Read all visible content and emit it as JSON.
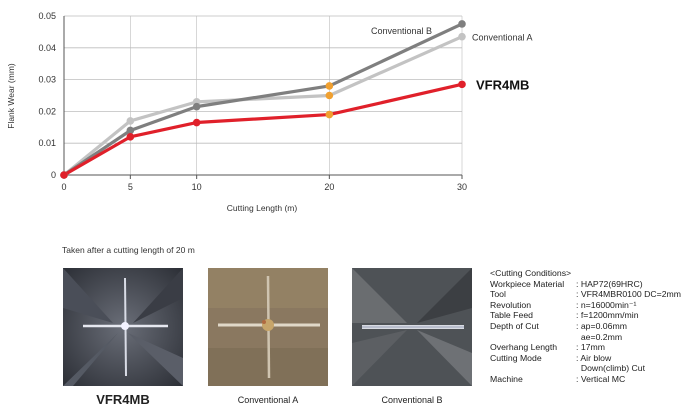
{
  "chart_data": {
    "type": "line",
    "title": "",
    "xlabel": "Cutting Length (m)",
    "ylabel": "Flank Wear (mm)",
    "x": [
      0,
      5,
      10,
      20,
      30
    ],
    "xticks": [
      "0",
      "5",
      "10",
      "20",
      "30"
    ],
    "yticks": [
      "0",
      "0.01",
      "0.02",
      "0.03",
      "0.04",
      "0.05"
    ],
    "xlim": [
      0,
      30
    ],
    "ylim": [
      0,
      0.05
    ],
    "grid": "horizontal",
    "series": [
      {
        "name": "Conventional A",
        "color": "#c3c3c3",
        "values": [
          0,
          0.017,
          0.023,
          0.025,
          0.0435
        ],
        "highlight_color": "#f0a030",
        "highlight_index": 3
      },
      {
        "name": "Conventional B",
        "color": "#7f7f7f",
        "values": [
          0,
          0.014,
          0.0215,
          0.028,
          0.0475
        ],
        "highlight_color": "#f0a030",
        "highlight_index": 3
      },
      {
        "name": "VFR4MB",
        "color": "#e0202a",
        "values": [
          0,
          0.012,
          0.0165,
          0.019,
          0.0285
        ],
        "highlight_color": "#f0a030",
        "highlight_index": 3
      }
    ]
  },
  "photos": {
    "note": "Taken after a cutting length of 20 m",
    "labels": [
      "VFR4MB",
      "Conventional A",
      "Conventional B"
    ]
  },
  "conditions": {
    "title": "<Cutting Conditions>",
    "rows": [
      {
        "k": "Workpiece Material",
        "v": ": HAP72(69HRC)"
      },
      {
        "k": "Tool",
        "v": ": VFR4MBR0100 DC=2mm"
      },
      {
        "k": "Revolution",
        "v": ": n=16000min⁻¹"
      },
      {
        "k": "Table Feed",
        "v": ": f=1200mm/min"
      },
      {
        "k": "Depth of Cut",
        "v": ": ap=0.06mm"
      },
      {
        "k": "",
        "v": "  ae=0.2mm"
      },
      {
        "k": "Overhang Length",
        "v": ": 17mm"
      },
      {
        "k": "Cutting Mode",
        "v": ": Air blow"
      },
      {
        "k": "",
        "v": "  Down(climb) Cut"
      },
      {
        "k": "Machine",
        "v": ": Vertical MC"
      }
    ]
  }
}
